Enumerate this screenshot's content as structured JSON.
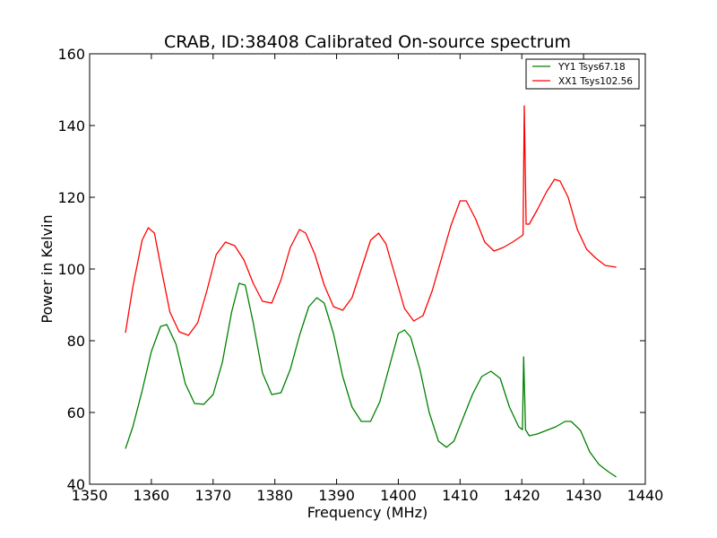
{
  "chart_data": {
    "type": "line",
    "title": "CRAB, ID:38408 Calibrated On-source spectrum",
    "xlabel": "Frequency (MHz)",
    "ylabel": "Power in Kelvin",
    "xlim": [
      1350,
      1440
    ],
    "ylim": [
      40,
      160
    ],
    "xticks": [
      1350,
      1360,
      1370,
      1380,
      1390,
      1400,
      1410,
      1420,
      1430,
      1440
    ],
    "yticks": [
      40,
      60,
      80,
      100,
      120,
      140,
      160
    ],
    "grid": false,
    "legend_position": "top-right",
    "series": [
      {
        "name": "YY1 Tsys67.18",
        "color": "#008000",
        "x": [
          1355.8,
          1357,
          1358.5,
          1360,
          1361.5,
          1362.5,
          1364,
          1365.5,
          1367,
          1368.5,
          1370,
          1371.5,
          1373,
          1374.2,
          1375.2,
          1376.5,
          1378,
          1379.5,
          1381,
          1382.5,
          1384,
          1385.5,
          1386.8,
          1388,
          1389.5,
          1391,
          1392.5,
          1394,
          1395.5,
          1397,
          1398.5,
          1400,
          1401,
          1402,
          1403.5,
          1405,
          1406.5,
          1407.8,
          1409,
          1410.5,
          1412,
          1413.5,
          1415,
          1416.5,
          1418,
          1419.5,
          1420.1,
          1420.3,
          1420.6,
          1421.2,
          1422.5,
          1424,
          1425.5,
          1427,
          1428,
          1429.5,
          1431,
          1432.5,
          1434,
          1435.3
        ],
        "y": [
          49.9,
          56,
          66,
          77,
          84,
          84.5,
          79,
          68,
          62.5,
          62.3,
          65,
          74,
          88,
          96,
          95.5,
          85,
          71,
          65,
          65.5,
          72,
          81.5,
          89.5,
          92,
          90.5,
          82,
          70,
          61.5,
          57.5,
          57.5,
          63,
          72.5,
          82,
          83,
          81,
          72,
          60,
          52,
          50.3,
          52,
          58.5,
          65,
          70,
          71.5,
          69.5,
          61.5,
          56,
          55.2,
          75.5,
          55.2,
          53.5,
          54,
          55,
          56,
          57.5,
          57.5,
          55,
          49,
          45.5,
          43.5,
          42
        ]
      },
      {
        "name": "XX1 Tsys102.56",
        "color": "#ff0000",
        "x": [
          1355.8,
          1357,
          1358.5,
          1359.5,
          1360.5,
          1361.5,
          1363,
          1364.5,
          1366,
          1367.5,
          1369,
          1370.5,
          1372,
          1373.5,
          1375,
          1376.5,
          1378,
          1379.5,
          1381,
          1382.5,
          1384,
          1385,
          1386.5,
          1388,
          1389.5,
          1391,
          1392.5,
          1394,
          1395.5,
          1396.8,
          1398,
          1399.5,
          1401,
          1402.5,
          1404,
          1405.5,
          1407,
          1408.5,
          1410,
          1411,
          1412.5,
          1414,
          1415.5,
          1417,
          1418.5,
          1419.8,
          1420.2,
          1420.4,
          1420.7,
          1421.2,
          1422.5,
          1424,
          1425.3,
          1426.2,
          1427.5,
          1429,
          1430.5,
          1432,
          1433.5,
          1435.3
        ],
        "y": [
          82.2,
          95,
          108,
          111.5,
          110,
          101,
          88,
          82.5,
          81.5,
          85,
          94,
          104,
          107.5,
          106.5,
          102.5,
          96,
          91,
          90.5,
          97,
          106,
          111,
          110,
          104,
          95.5,
          89.5,
          88.5,
          92,
          100,
          108,
          110,
          107,
          98,
          89,
          85.5,
          87,
          94,
          103,
          112,
          119,
          119,
          114,
          107.5,
          105,
          106,
          107.5,
          109,
          109.5,
          145.5,
          112.5,
          112.5,
          116.5,
          121.5,
          125,
          124.5,
          120,
          111,
          105.5,
          103,
          101,
          100.5
        ]
      }
    ]
  }
}
